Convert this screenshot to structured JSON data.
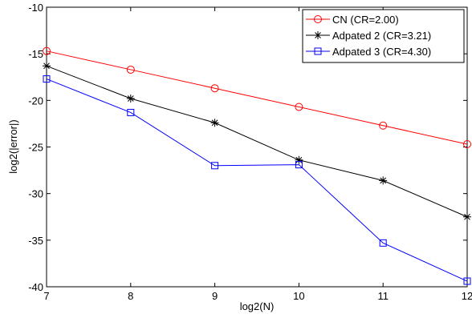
{
  "chart_data": {
    "type": "line",
    "title": "",
    "xlabel": "log2(N)",
    "ylabel": "log2(|error|)",
    "xlim": [
      7,
      12
    ],
    "ylim": [
      -40,
      -10
    ],
    "x_ticks": [
      7,
      8,
      9,
      10,
      11,
      12
    ],
    "y_ticks": [
      -40,
      -35,
      -30,
      -25,
      -20,
      -15,
      -10
    ],
    "grid": false,
    "legend_position": "top-right",
    "x": [
      7,
      8,
      9,
      10,
      11,
      12
    ],
    "series": [
      {
        "name": "CN (CR=2.00)",
        "color": "#ff0000",
        "marker": "circle",
        "values": [
          -14.7,
          -16.7,
          -18.7,
          -20.7,
          -22.7,
          -24.7
        ]
      },
      {
        "name": "Adpated 2 (CR=3.21)",
        "color": "#000000",
        "marker": "asterisk",
        "values": [
          -16.3,
          -19.8,
          -22.4,
          -26.4,
          -28.6,
          -32.5
        ]
      },
      {
        "name": "Adpated 3 (CR=4.30)",
        "color": "#0000ff",
        "marker": "square",
        "values": [
          -17.7,
          -21.3,
          -27.0,
          -26.9,
          -35.3,
          -39.4
        ]
      }
    ]
  }
}
